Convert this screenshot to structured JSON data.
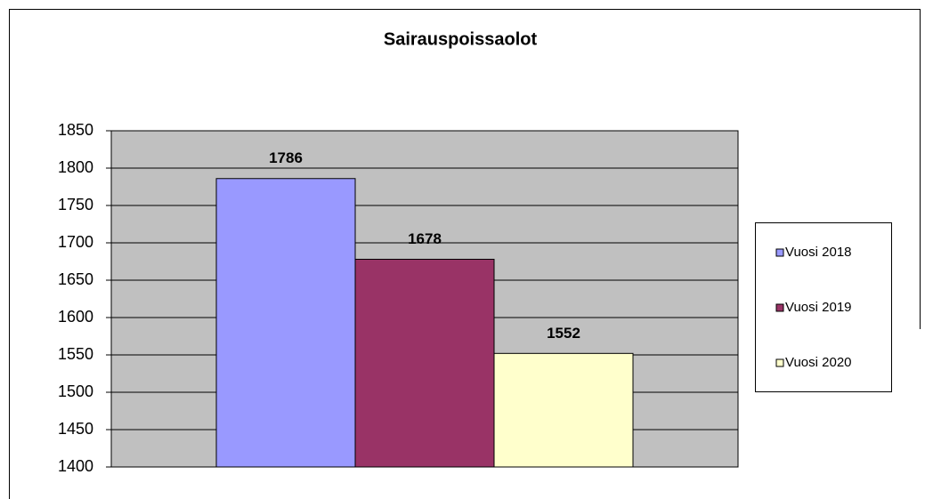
{
  "chart_data": {
    "type": "bar",
    "title": "Sairauspoissaolot",
    "categories": [
      null
    ],
    "series": [
      {
        "name": "Vuosi 2018",
        "color": "#9999ff",
        "values": [
          1786
        ]
      },
      {
        "name": "Vuosi 2019",
        "color": "#993366",
        "values": [
          1678
        ]
      },
      {
        "name": "Vuosi 2020",
        "color": "#ffffcc",
        "values": [
          1552
        ]
      }
    ],
    "ylim": [
      1400,
      1850
    ],
    "yticks": [
      1400,
      1450,
      1500,
      1550,
      1600,
      1650,
      1700,
      1750,
      1800,
      1850
    ],
    "grid": true,
    "legend": "right"
  }
}
